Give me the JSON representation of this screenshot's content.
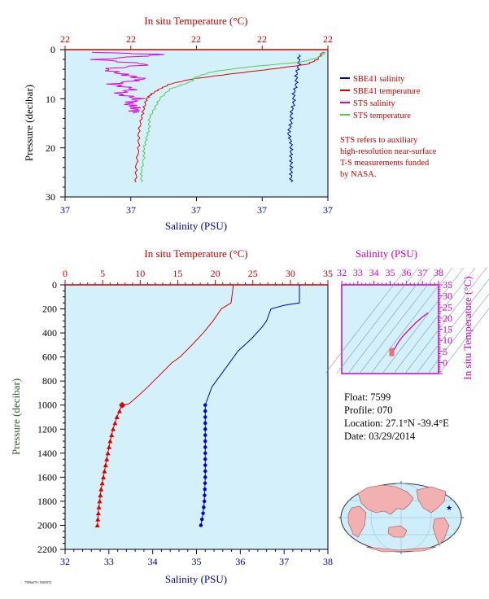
{
  "colors": {
    "plot_bg": "#d4f0fa",
    "sbe_salinity": "#0000cc",
    "sbe_temperature": "#dd0000",
    "sts_salinity": "#dd00dd",
    "sts_temperature": "#55cc55",
    "salinity_axis": "#000099",
    "temperature_axis": "#cc0000",
    "pressure_axis": "#2e5e2e",
    "ts_axis": "#cc00cc"
  },
  "legend": [
    {
      "label": "SBE41 salinity",
      "color": "#0000cc"
    },
    {
      "label": "SBE41 temperature",
      "color": "#dd0000"
    },
    {
      "label": "STS salinity",
      "color": "#dd00dd"
    },
    {
      "label": "STS temperature",
      "color": "#55cc55"
    }
  ],
  "note": [
    "STS refers to auxiliary",
    "high-resolution near-surface",
    "T-S measurements funded",
    "by NASA."
  ],
  "float_info": {
    "float": "Float:  7599",
    "profile": "Profile:  070",
    "location": "Location:  27.1°N  -39.4°E",
    "date": "Date:  03/29/2014"
  },
  "footer_code": "7599n070 / 0365074",
  "chart_data": [
    {
      "id": "near-surface-profile",
      "type": "line",
      "title": "In situ Temperature (°C)",
      "xlabel": "Salinity (PSU)",
      "ylabel": "Pressure (decibar)",
      "ylim": [
        30,
        0
      ],
      "y_ticks": [
        0,
        10,
        20,
        30
      ],
      "salinity_ticks": [
        "37",
        "37",
        "37",
        "37",
        "37",
        "37"
      ],
      "temperature_ticks": [
        "22",
        "22",
        "22",
        "22",
        "22"
      ],
      "series": [
        {
          "name": "SBE41 salinity",
          "x_frac": [
            0.89,
            0.89,
            0.88,
            0.88,
            0.87,
            0.87,
            0.86,
            0.86,
            0.85,
            0.86,
            0.86,
            0.86,
            0.86,
            0.86
          ],
          "y": [
            1,
            3,
            5,
            7,
            9,
            11,
            13,
            15,
            17,
            19,
            21,
            23,
            25,
            27
          ]
        },
        {
          "name": "SBE41 temperature",
          "x_frac": [
            0.98,
            0.96,
            0.92,
            0.78,
            0.62,
            0.48,
            0.4,
            0.36,
            0.33,
            0.31,
            0.3,
            0.29,
            0.28,
            0.28,
            0.27,
            0.27
          ],
          "y": [
            0.5,
            2,
            3,
            4,
            5,
            6,
            7,
            8,
            9,
            10,
            12,
            14,
            17,
            20,
            24,
            27
          ]
        },
        {
          "name": "STS salinity",
          "x_frac": [
            0.08,
            0.38,
            0.12,
            0.32,
            0.15,
            0.22,
            0.3,
            0.18,
            0.26,
            0.2,
            0.28,
            0.24,
            0.27,
            0.26
          ],
          "y": [
            0.5,
            1,
            2,
            3,
            4,
            5,
            6,
            7,
            8,
            9,
            10,
            11,
            12,
            13
          ]
        },
        {
          "name": "STS temperature",
          "x_frac": [
            0.99,
            0.97,
            0.9,
            0.7,
            0.56,
            0.5,
            0.48,
            0.4,
            0.36,
            0.34,
            0.32,
            0.32,
            0.31,
            0.3,
            0.3,
            0.29,
            0.29
          ],
          "y": [
            0.5,
            1.5,
            2.5,
            3.5,
            4.5,
            5.5,
            6.5,
            8,
            10,
            12,
            14,
            16,
            18,
            20,
            22,
            25,
            27
          ]
        }
      ]
    },
    {
      "id": "full-profile",
      "type": "line",
      "title": "In situ Temperature (°C)",
      "xlabel": "Salinity (PSU)",
      "ylabel": "Pressure (decibar)",
      "ylim": [
        2200,
        0
      ],
      "y_ticks": [
        0,
        200,
        400,
        600,
        800,
        1000,
        1200,
        1400,
        1600,
        1800,
        2000,
        2200
      ],
      "salinity_range": [
        32,
        38
      ],
      "salinity_ticks": [
        32,
        33,
        34,
        35,
        36,
        37,
        38
      ],
      "temperature_range": [
        0,
        35
      ],
      "temperature_ticks": [
        0,
        5,
        10,
        15,
        20,
        25,
        30,
        35
      ],
      "series": [
        {
          "name": "Temperature",
          "axis": "temperature",
          "values": [
            22.4,
            22.3,
            22.1,
            20.8,
            19.7,
            18.4,
            16.9,
            15.3,
            14.2,
            12.6,
            11.0,
            9.8,
            8.5,
            7.6,
            6.9,
            6.4,
            6.0,
            5.7,
            5.4,
            5.1,
            4.8,
            4.5,
            4.3
          ],
          "pressure": [
            0,
            60,
            150,
            200,
            300,
            400,
            500,
            600,
            650,
            750,
            850,
            920,
            990,
            1000,
            1100,
            1200,
            1300,
            1400,
            1500,
            1600,
            1700,
            1850,
            2000
          ]
        },
        {
          "name": "Salinity",
          "axis": "salinity",
          "values": [
            37.35,
            37.35,
            37.35,
            37.0,
            36.7,
            36.6,
            36.5,
            36.25,
            35.95,
            35.75,
            35.55,
            35.35,
            35.25,
            35.2,
            35.2,
            35.2,
            35.2,
            35.18,
            35.15,
            35.1
          ],
          "pressure": [
            0,
            100,
            150,
            170,
            200,
            300,
            350,
            450,
            550,
            650,
            750,
            850,
            950,
            1000,
            1200,
            1400,
            1600,
            1800,
            1900,
            2000
          ]
        }
      ]
    },
    {
      "id": "ts-diagram",
      "type": "line",
      "title": "Salinity (PSU)",
      "xlabel": "Salinity (PSU)",
      "ylabel": "In situ Temperature (°C)",
      "xlim": [
        32,
        38
      ],
      "ylim": [
        -5,
        35
      ],
      "x_ticks": [
        32,
        33,
        34,
        35,
        36,
        37,
        38
      ],
      "y_ticks": [
        0,
        5,
        10,
        15,
        20,
        25,
        30,
        35
      ],
      "series": [
        {
          "name": "T-S",
          "x": [
            35.1,
            35.2,
            35.3,
            35.5,
            35.8,
            36.2,
            36.6,
            37.0,
            37.35
          ],
          "y": [
            4.3,
            5.0,
            6.5,
            9.0,
            12.0,
            15.0,
            18.0,
            20.5,
            22.4
          ]
        }
      ]
    }
  ]
}
